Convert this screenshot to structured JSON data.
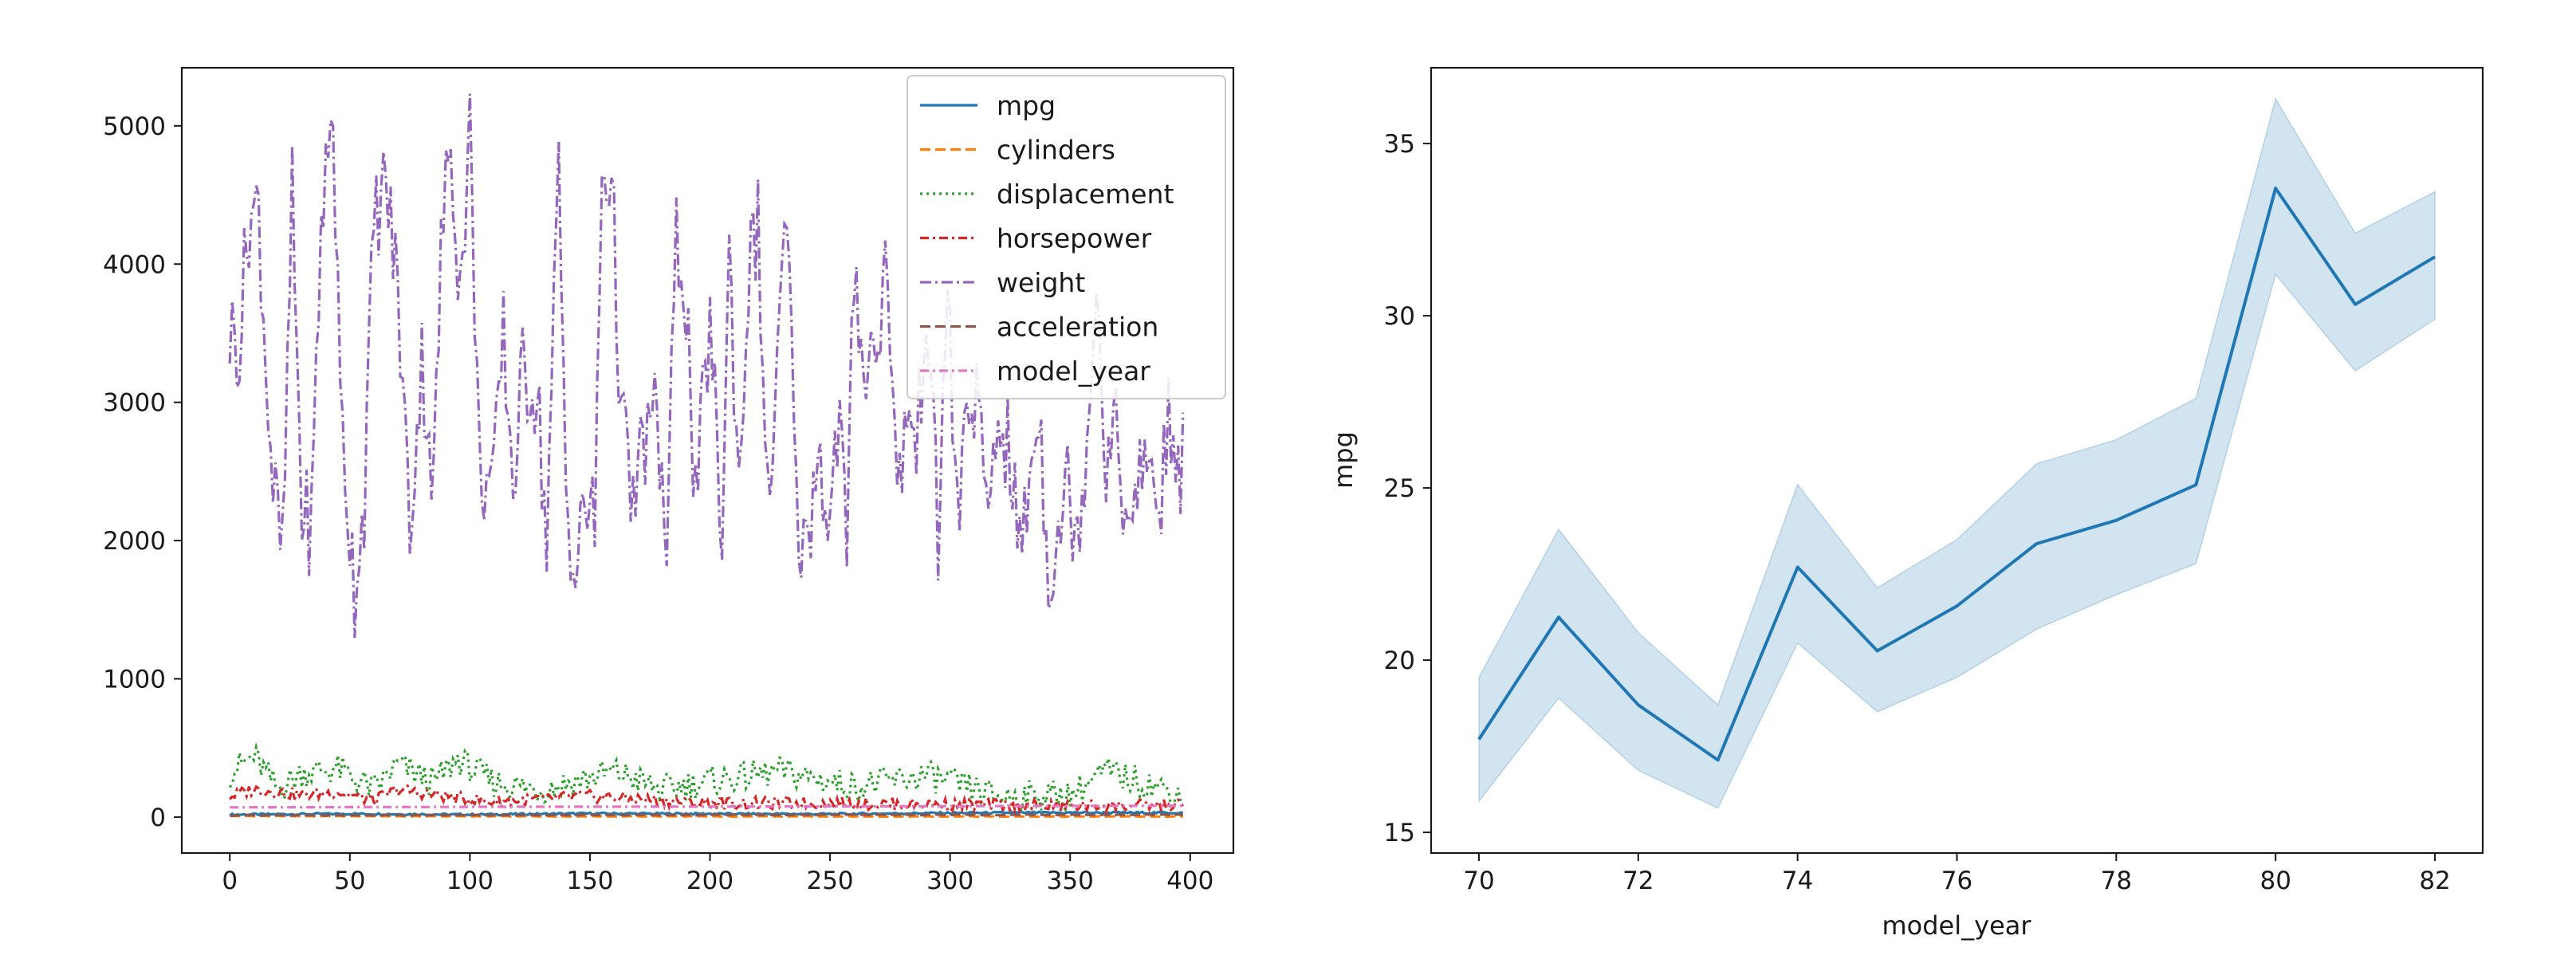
{
  "chart_data": [
    {
      "type": "line",
      "title": "",
      "xlabel": "",
      "ylabel": "",
      "xlim": [
        -20,
        418
      ],
      "ylim": [
        -260,
        5420
      ],
      "xticks": [
        0,
        50,
        100,
        150,
        200,
        250,
        300,
        350,
        400
      ],
      "yticks": [
        0,
        1000,
        2000,
        3000,
        4000,
        5000
      ],
      "legend_position": "top-right",
      "series": [
        {
          "name": "mpg",
          "color": "#1f77b4",
          "dash": "solid",
          "anchors": [
            [
              0,
              18
            ],
            [
              50,
              24
            ],
            [
              100,
              18
            ],
            [
              150,
              26
            ],
            [
              200,
              24
            ],
            [
              250,
              22
            ],
            [
              300,
              30
            ],
            [
              350,
              32
            ],
            [
              397,
              31
            ]
          ],
          "amplitude": 7
        },
        {
          "name": "cylinders",
          "color": "#ff7f0e",
          "dash": "dashed",
          "anchors": [
            [
              0,
              8
            ],
            [
              100,
              6
            ],
            [
              200,
              5
            ],
            [
              300,
              4
            ],
            [
              397,
              4
            ]
          ],
          "amplitude": 2
        },
        {
          "name": "displacement",
          "color": "#2ca02c",
          "dash": "dotted",
          "anchors": [
            [
              0,
              320
            ],
            [
              10,
              440
            ],
            [
              20,
              200
            ],
            [
              30,
              320
            ],
            [
              45,
              350
            ],
            [
              60,
              200
            ],
            [
              70,
              380
            ],
            [
              85,
              250
            ],
            [
              95,
              420
            ],
            [
              110,
              250
            ],
            [
              130,
              200
            ],
            [
              160,
              330
            ],
            [
              180,
              200
            ],
            [
              200,
              260
            ],
            [
              230,
              330
            ],
            [
              260,
              220
            ],
            [
              290,
              300
            ],
            [
              320,
              150
            ],
            [
              350,
              160
            ],
            [
              365,
              330
            ],
            [
              390,
              200
            ],
            [
              397,
              150
            ]
          ],
          "amplitude": 110
        },
        {
          "name": "horsepower",
          "color": "#d62728",
          "dash": "dashdot",
          "anchors": [
            [
              0,
              150
            ],
            [
              10,
              200
            ],
            [
              30,
              160
            ],
            [
              45,
              180
            ],
            [
              60,
              120
            ],
            [
              70,
              200
            ],
            [
              90,
              150
            ],
            [
              110,
              110
            ],
            [
              150,
              150
            ],
            [
              200,
              100
            ],
            [
              250,
              100
            ],
            [
              300,
              90
            ],
            [
              350,
              80
            ],
            [
              397,
              85
            ]
          ],
          "amplitude": 45
        },
        {
          "name": "weight",
          "color": "#9467bd",
          "dash": "loosedashdot",
          "anchors": [
            [
              0,
              3500
            ],
            [
              4,
              3450
            ],
            [
              8,
              4350
            ],
            [
              12,
              4400
            ],
            [
              15,
              3300
            ],
            [
              18,
              2400
            ],
            [
              22,
              1850
            ],
            [
              26,
              4500
            ],
            [
              30,
              2200
            ],
            [
              34,
              2100
            ],
            [
              38,
              4300
            ],
            [
              43,
              5150
            ],
            [
              46,
              3000
            ],
            [
              49,
              2300
            ],
            [
              52,
              1650
            ],
            [
              56,
              2300
            ],
            [
              60,
              4300
            ],
            [
              65,
              4600
            ],
            [
              70,
              3800
            ],
            [
              75,
              2100
            ],
            [
              80,
              3300
            ],
            [
              85,
              2400
            ],
            [
              88,
              4100
            ],
            [
              92,
              4950
            ],
            [
              96,
              3800
            ],
            [
              100,
              4990
            ],
            [
              104,
              2500
            ],
            [
              110,
              2400
            ],
            [
              114,
              3500
            ],
            [
              118,
              2400
            ],
            [
              122,
              3200
            ],
            [
              128,
              3100
            ],
            [
              132,
              2000
            ],
            [
              137,
              4700
            ],
            [
              140,
              2400
            ],
            [
              144,
              1700
            ],
            [
              148,
              2300
            ],
            [
              152,
              2100
            ],
            [
              155,
              4650
            ],
            [
              159,
              4650
            ],
            [
              163,
              2900
            ],
            [
              168,
              2200
            ],
            [
              172,
              2700
            ],
            [
              178,
              2900
            ],
            [
              182,
              1900
            ],
            [
              186,
              4200
            ],
            [
              190,
              3800
            ],
            [
              194,
              2200
            ],
            [
              200,
              3600
            ],
            [
              205,
              2000
            ],
            [
              208,
              4100
            ],
            [
              212,
              2400
            ],
            [
              216,
              3900
            ],
            [
              220,
              4300
            ],
            [
              224,
              2200
            ],
            [
              228,
              3200
            ],
            [
              232,
              4350
            ],
            [
              236,
              2200
            ],
            [
              240,
              1900
            ],
            [
              245,
              2700
            ],
            [
              250,
              2100
            ],
            [
              254,
              3000
            ],
            [
              257,
              1800
            ],
            [
              260,
              4000
            ],
            [
              265,
              3200
            ],
            [
              270,
              3500
            ],
            [
              274,
              4100
            ],
            [
              278,
              2200
            ],
            [
              282,
              3000
            ],
            [
              286,
              2600
            ],
            [
              290,
              3800
            ],
            [
              295,
              2000
            ],
            [
              299,
              3900
            ],
            [
              303,
              2100
            ],
            [
              307,
              2900
            ],
            [
              311,
              3100
            ],
            [
              315,
              2100
            ],
            [
              320,
              2900
            ],
            [
              325,
              2600
            ],
            [
              329,
              1900
            ],
            [
              333,
              2400
            ],
            [
              337,
              3000
            ],
            [
              341,
              1750
            ],
            [
              345,
              2100
            ],
            [
              349,
              2400
            ],
            [
              353,
              2000
            ],
            [
              357,
              2800
            ],
            [
              361,
              3900
            ],
            [
              365,
              2600
            ],
            [
              370,
              2800
            ],
            [
              374,
              1950
            ],
            [
              379,
              2400
            ],
            [
              383,
              2700
            ],
            [
              387,
              2100
            ],
            [
              391,
              3000
            ],
            [
              394,
              2200
            ],
            [
              397,
              2700
            ]
          ],
          "amplitude": 380
        },
        {
          "name": "acceleration",
          "color": "#8c564b",
          "dash": "dashed",
          "anchors": [
            [
              0,
              12
            ],
            [
              200,
              16
            ],
            [
              397,
              17
            ]
          ],
          "amplitude": 3
        },
        {
          "name": "model_year",
          "color": "#e377c2",
          "dash": "dashdot",
          "anchors": [
            [
              0,
              70
            ],
            [
              100,
              74
            ],
            [
              200,
              76
            ],
            [
              300,
              79
            ],
            [
              397,
              82
            ]
          ],
          "amplitude": 0.5
        }
      ]
    },
    {
      "type": "line",
      "title": "",
      "xlabel": "model_year",
      "ylabel": "mpg",
      "xlim": [
        69.4,
        82.6
      ],
      "ylim": [
        14.4,
        37.2
      ],
      "xticks": [
        70,
        72,
        74,
        76,
        78,
        80,
        82
      ],
      "yticks": [
        15,
        20,
        25,
        30,
        35
      ],
      "confidence_band": true,
      "series": [
        {
          "name": "mpg",
          "color": "#1f77b4",
          "x": [
            70,
            71,
            72,
            73,
            74,
            75,
            76,
            77,
            78,
            79,
            80,
            81,
            82
          ],
          "y": [
            17.7,
            21.25,
            18.7,
            17.1,
            22.7,
            20.27,
            21.57,
            23.38,
            24.06,
            25.09,
            33.7,
            30.33,
            31.71
          ],
          "ci_low": [
            15.9,
            18.9,
            16.8,
            15.7,
            20.5,
            18.5,
            19.5,
            20.9,
            21.9,
            22.8,
            31.2,
            28.4,
            29.9
          ],
          "ci_high": [
            19.5,
            23.8,
            20.8,
            18.7,
            25.1,
            22.1,
            23.5,
            25.7,
            26.4,
            27.6,
            36.3,
            32.4,
            33.6
          ]
        }
      ]
    }
  ]
}
